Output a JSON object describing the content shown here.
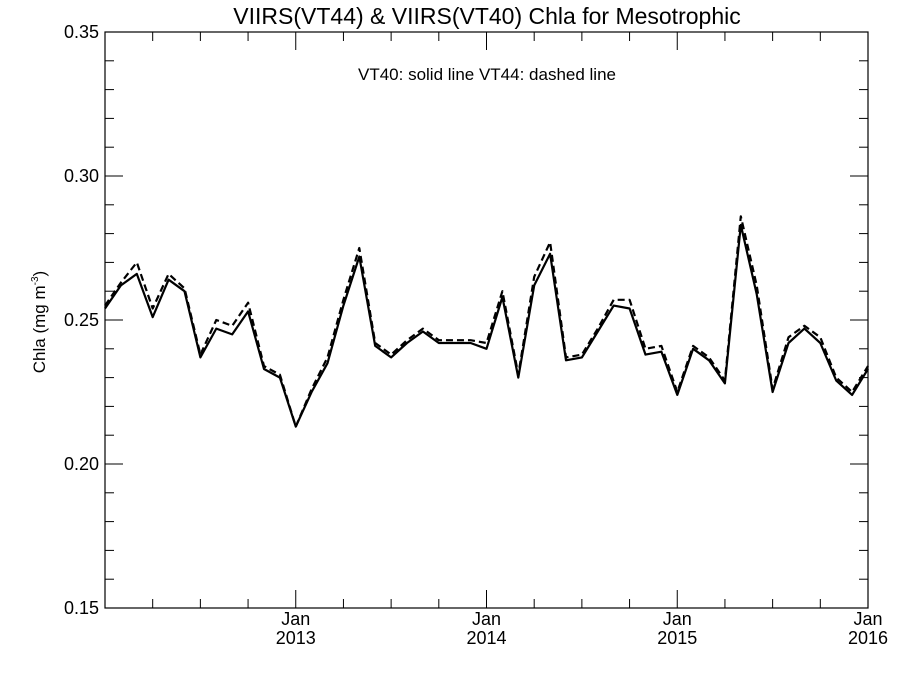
{
  "chart_data": {
    "type": "line",
    "title": "VIIRS(VT44) & VIIRS(VT40)  Chla for Mesotrophic",
    "annotation": "VT40: solid line   VT44: dashed line",
    "ylabel": {
      "main": "Chla (mg m",
      "superscript": "-3",
      "close": ")"
    },
    "xlabel": "",
    "ylim": [
      0.15,
      0.35
    ],
    "xlim": [
      "2012-01",
      "2016-01"
    ],
    "y_ticks": [
      "0.15",
      "0.20",
      "0.25",
      "0.30",
      "0.35"
    ],
    "y_minor_step": 0.01,
    "x_ticks": [
      {
        "x": "2013-01",
        "month": "Jan",
        "year": "2013"
      },
      {
        "x": "2014-01",
        "month": "Jan",
        "year": "2014"
      },
      {
        "x": "2015-01",
        "month": "Jan",
        "year": "2015"
      },
      {
        "x": "2016-01",
        "month": "Jan",
        "year": "2016"
      }
    ],
    "x_minor_months": 3,
    "grid": false,
    "x": [
      "2012-01",
      "2012-02",
      "2012-03",
      "2012-04",
      "2012-05",
      "2012-06",
      "2012-07",
      "2012-08",
      "2012-09",
      "2012-10",
      "2012-11",
      "2012-12",
      "2013-01",
      "2013-02",
      "2013-03",
      "2013-04",
      "2013-05",
      "2013-06",
      "2013-07",
      "2013-08",
      "2013-09",
      "2013-10",
      "2013-11",
      "2013-12",
      "2014-01",
      "2014-02",
      "2014-03",
      "2014-04",
      "2014-05",
      "2014-06",
      "2014-07",
      "2014-08",
      "2014-09",
      "2014-10",
      "2014-11",
      "2014-12",
      "2015-01",
      "2015-02",
      "2015-03",
      "2015-04",
      "2015-05",
      "2015-06",
      "2015-07",
      "2015-08",
      "2015-09",
      "2015-10",
      "2015-11",
      "2015-12",
      "2016-01"
    ],
    "series": [
      {
        "name": "VT40",
        "style": "solid",
        "color": "#000000",
        "values": [
          0.254,
          0.262,
          0.266,
          0.251,
          0.264,
          0.26,
          0.237,
          0.247,
          0.245,
          0.253,
          0.233,
          0.23,
          0.213,
          0.225,
          0.235,
          0.255,
          0.272,
          0.241,
          0.237,
          0.242,
          0.246,
          0.242,
          0.242,
          0.242,
          0.24,
          0.258,
          0.23,
          0.262,
          0.273,
          0.236,
          0.237,
          0.246,
          0.255,
          0.254,
          0.238,
          0.239,
          0.224,
          0.24,
          0.236,
          0.228,
          0.283,
          0.259,
          0.225,
          0.242,
          0.247,
          0.242,
          0.229,
          0.224,
          0.233
        ]
      },
      {
        "name": "VT44",
        "style": "dashed",
        "color": "#000000",
        "values": [
          0.255,
          0.263,
          0.27,
          0.254,
          0.266,
          0.261,
          0.238,
          0.25,
          0.248,
          0.256,
          0.234,
          0.231,
          0.213,
          0.226,
          0.237,
          0.257,
          0.275,
          0.242,
          0.238,
          0.243,
          0.247,
          0.243,
          0.243,
          0.243,
          0.242,
          0.26,
          0.231,
          0.265,
          0.277,
          0.237,
          0.238,
          0.247,
          0.257,
          0.257,
          0.24,
          0.241,
          0.225,
          0.241,
          0.237,
          0.229,
          0.286,
          0.262,
          0.226,
          0.244,
          0.248,
          0.244,
          0.23,
          0.225,
          0.234
        ]
      }
    ]
  }
}
